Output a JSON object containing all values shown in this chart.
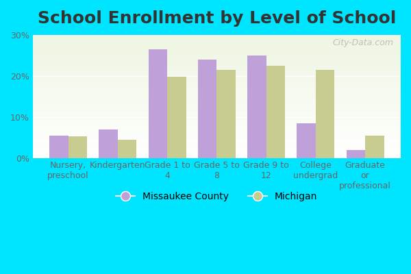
{
  "title": "School Enrollment by Level of School",
  "categories": [
    "Nursery,\npreschool",
    "Kindergarten",
    "Grade 1 to\n4",
    "Grade 5 to\n8",
    "Grade 9 to\n12",
    "College\nundergrad",
    "Graduate\nor\nprofessional"
  ],
  "missaukee": [
    5.5,
    7.0,
    26.5,
    24.0,
    25.0,
    8.5,
    2.0
  ],
  "michigan": [
    5.2,
    4.5,
    19.8,
    21.5,
    22.5,
    21.5,
    5.5
  ],
  "missaukee_color": "#c0a0d8",
  "michigan_color": "#c8cc90",
  "background_outer": "#00e5ff",
  "ylim": [
    0,
    30
  ],
  "yticks": [
    0,
    10,
    20,
    30
  ],
  "ytick_labels": [
    "0%",
    "10%",
    "20%",
    "30%"
  ],
  "legend_missaukee": "Missaukee County",
  "legend_michigan": "Michigan",
  "title_fontsize": 18,
  "tick_fontsize": 9,
  "legend_fontsize": 10,
  "bar_width": 0.38
}
